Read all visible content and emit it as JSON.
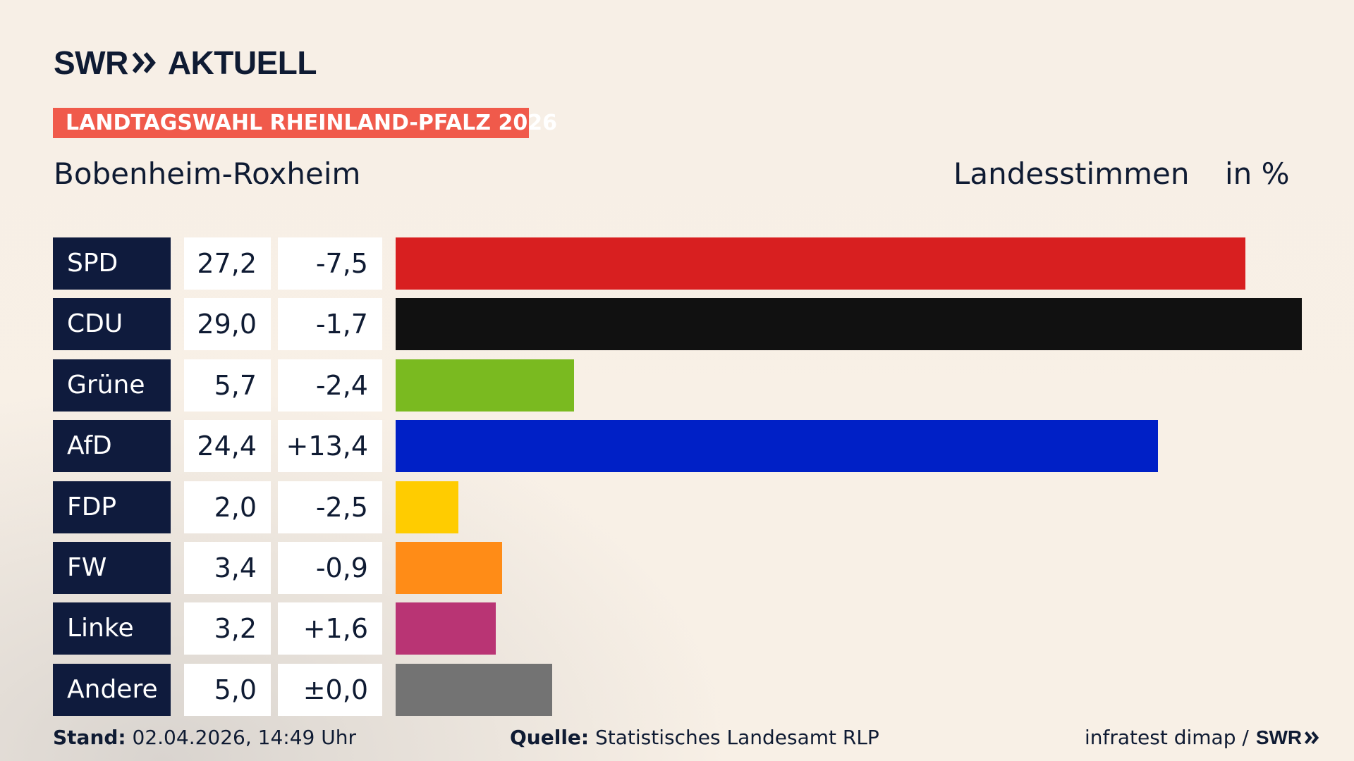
{
  "header": {
    "logo_text_left": "SWR",
    "logo_text_right": "AKTUELL",
    "badge": "LANDTAGSWAHL RHEINLAND-PFALZ 2026",
    "place": "Bobenheim-Roxheim",
    "metric": "Landesstimmen",
    "unit": "in %"
  },
  "footer": {
    "stand_label": "Stand:",
    "stand_value": "02.04.2026, 14:49 Uhr",
    "source_label": "Quelle:",
    "source_value": "Statistisches Landesamt RLP",
    "credit": "infratest dimap /",
    "credit_logo": "SWR"
  },
  "colors": {
    "navy": "#0f1b3d",
    "badge": "#f05a4b"
  },
  "chart_data": {
    "type": "bar",
    "orientation": "horizontal",
    "xlim": [
      0,
      29.0
    ],
    "categories": [
      "SPD",
      "CDU",
      "Grüne",
      "AfD",
      "FDP",
      "FW",
      "Linke",
      "Andere"
    ],
    "values": [
      27.2,
      29.0,
      5.7,
      24.4,
      2.0,
      3.4,
      3.2,
      5.0
    ],
    "value_labels": [
      "27,2",
      "29,0",
      "5,7",
      "24,4",
      "2,0",
      "3,4",
      "3,2",
      "5,0"
    ],
    "diff_labels": [
      "-7,5",
      "-1,7",
      "-2,4",
      "+13,4",
      "-2,5",
      "-0,9",
      "+1,6",
      "±0,0"
    ],
    "colors": [
      "#d81f20",
      "#111111",
      "#7aba20",
      "#0020c6",
      "#ffcc00",
      "#ff8c17",
      "#b93474",
      "#737373"
    ]
  }
}
